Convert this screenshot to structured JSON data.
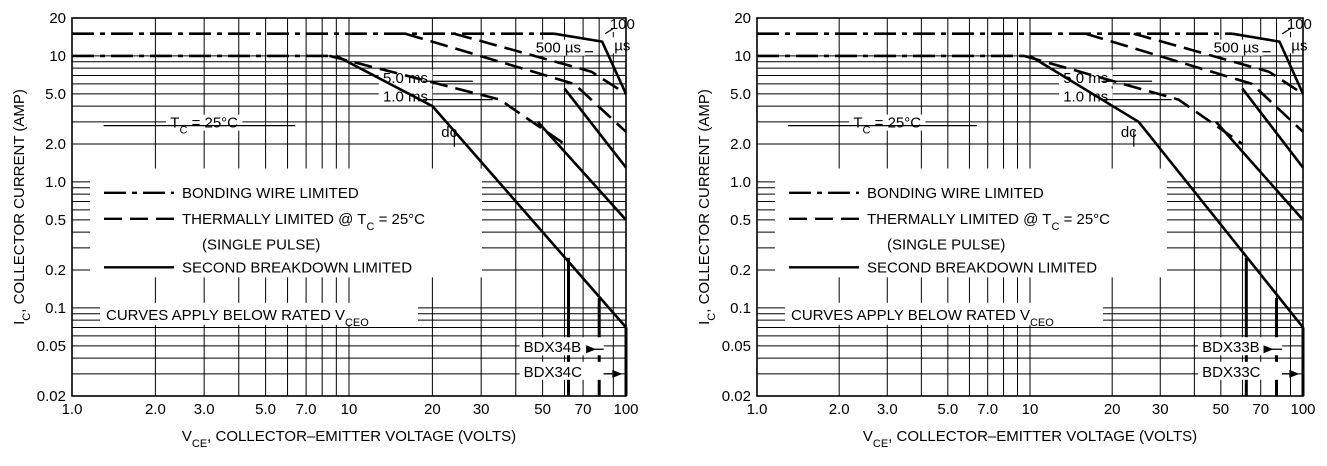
{
  "chart_data": [
    {
      "type": "line",
      "x_scale": "log",
      "y_scale": "log",
      "xlim": [
        1,
        100
      ],
      "ylim": [
        0.02,
        20
      ],
      "grid": true,
      "x_ticks": [
        {
          "v": 1,
          "t": "1.0"
        },
        {
          "v": 2,
          "t": "2.0"
        },
        {
          "v": 3,
          "t": "3.0"
        },
        {
          "v": 5,
          "t": "5.0"
        },
        {
          "v": 7,
          "t": "7.0"
        },
        {
          "v": 10,
          "t": "10"
        },
        {
          "v": 20,
          "t": "20"
        },
        {
          "v": 30,
          "t": "30"
        },
        {
          "v": 50,
          "t": "50"
        },
        {
          "v": 70,
          "t": "70"
        },
        {
          "v": 100,
          "t": "100"
        }
      ],
      "y_ticks": [
        {
          "v": 20,
          "t": "20"
        },
        {
          "v": 10,
          "t": "10"
        },
        {
          "v": 5,
          "t": "5.0"
        },
        {
          "v": 2,
          "t": "2.0"
        },
        {
          "v": 1,
          "t": "1.0"
        },
        {
          "v": 0.5,
          "t": "0.5"
        },
        {
          "v": 0.2,
          "t": "0.2"
        },
        {
          "v": 0.1,
          "t": "0.1"
        },
        {
          "v": 0.05,
          "t": "0.05"
        },
        {
          "v": 0.02,
          "t": "0.02"
        }
      ],
      "xlabel": {
        "pre": "V",
        "sub": "CE",
        "post": ", COLLECTOR–EMITTER VOLTAGE (VOLTS)"
      },
      "ylabel": {
        "pre": "I",
        "sub": "C",
        "post": ", COLLECTOR CURRENT (AMP)"
      },
      "series": [
        {
          "style": "dashdot",
          "x": [
            1,
            55
          ],
          "y": [
            15,
            15
          ]
        },
        {
          "style": "dashdot",
          "x": [
            1,
            8.5
          ],
          "y": [
            10,
            10
          ]
        },
        {
          "style": "dashed",
          "x": [
            8.5,
            35,
            60
          ],
          "y": [
            10,
            4.5,
            2
          ]
        },
        {
          "style": "dashed",
          "x": [
            16,
            65,
            100
          ],
          "y": [
            15,
            6,
            2.5
          ]
        },
        {
          "style": "dashed",
          "x": [
            24,
            75,
            100
          ],
          "y": [
            15,
            7.5,
            5
          ]
        },
        {
          "style": "solid",
          "x": [
            55,
            82,
            100
          ],
          "y": [
            15,
            13,
            5
          ]
        },
        {
          "style": "solid",
          "x": [
            60,
            100
          ],
          "y": [
            5.5,
            1.3
          ]
        },
        {
          "style": "solid",
          "x": [
            48,
            100
          ],
          "y": [
            3,
            0.5
          ]
        },
        {
          "style": "solid",
          "x": [
            9,
            20,
            100
          ],
          "y": [
            10,
            4,
            0.07
          ]
        },
        {
          "style": "solid",
          "x": [
            62,
            62
          ],
          "y": [
            0.02,
            0.25
          ]
        },
        {
          "style": "solid",
          "x": [
            80,
            80
          ],
          "y": [
            0.02,
            0.12
          ]
        },
        {
          "style": "solid",
          "x": [
            100,
            100
          ],
          "y": [
            0.02,
            0.07
          ]
        }
      ],
      "curve_labels": [
        {
          "t": "100",
          "x": 97,
          "y": 17,
          "line": [
            84,
            15,
            90,
            16.5
          ]
        },
        {
          "t": "µs",
          "x": 97,
          "y": 11.5
        },
        {
          "t": "500 µs",
          "x": 57,
          "y": 11,
          "line": [
            71,
            10.8,
            76,
            10.8
          ]
        },
        {
          "t": "5.0 ms",
          "x": 16,
          "y": 6.3,
          "line": [
            18.5,
            6.3,
            28,
            6.3
          ]
        },
        {
          "t": "1.0 ms",
          "x": 16,
          "y": 4.5,
          "line": [
            18.5,
            4.5,
            33,
            4.5
          ]
        },
        {
          "t": "dc",
          "x": 23,
          "y": 2.35,
          "line": [
            24,
            2.55,
            24,
            1.9
          ]
        },
        {
          "t": "T_C = 25°C",
          "x": 3.0,
          "y": 2.8,
          "line": [
            1.3,
            2.8,
            6.4,
            2.8
          ]
        }
      ],
      "legend": {
        "placement": "bottom-left",
        "items": [
          {
            "style": "dashdot",
            "text": "BONDING WIRE LIMITED"
          },
          {
            "style": "dashed",
            "text": "THERMALLY LIMITED @ T_C = 25°C"
          },
          {
            "style": "none",
            "text": "(SINGLE PULSE)"
          },
          {
            "style": "solid",
            "text": "SECOND BREAKDOWN LIMITED"
          }
        ],
        "note": "CURVES APPLY BELOW RATED V_CEO"
      },
      "annotations": [
        {
          "text": "BDX34B",
          "arrow_to_x": 78,
          "y": 0.047
        },
        {
          "text": "BDX34C",
          "arrow_to_x": 97,
          "y": 0.03
        }
      ]
    },
    {
      "type": "line",
      "x_scale": "log",
      "y_scale": "log",
      "xlim": [
        1,
        100
      ],
      "ylim": [
        0.02,
        20
      ],
      "grid": true,
      "x_ticks": [
        {
          "v": 1,
          "t": "1.0"
        },
        {
          "v": 2,
          "t": "2.0"
        },
        {
          "v": 3,
          "t": "3.0"
        },
        {
          "v": 5,
          "t": "5.0"
        },
        {
          "v": 7,
          "t": "7.0"
        },
        {
          "v": 10,
          "t": "10"
        },
        {
          "v": 20,
          "t": "20"
        },
        {
          "v": 30,
          "t": "30"
        },
        {
          "v": 50,
          "t": "50"
        },
        {
          "v": 70,
          "t": "70"
        },
        {
          "v": 100,
          "t": "100"
        }
      ],
      "y_ticks": [
        {
          "v": 20,
          "t": "20"
        },
        {
          "v": 10,
          "t": "10"
        },
        {
          "v": 5,
          "t": "5.0"
        },
        {
          "v": 2,
          "t": "2.0"
        },
        {
          "v": 1,
          "t": "1.0"
        },
        {
          "v": 0.5,
          "t": "0.5"
        },
        {
          "v": 0.2,
          "t": "0.2"
        },
        {
          "v": 0.1,
          "t": "0.1"
        },
        {
          "v": 0.05,
          "t": "0.05"
        },
        {
          "v": 0.02,
          "t": "0.02"
        }
      ],
      "xlabel": {
        "pre": "V",
        "sub": "CE",
        "post": ", COLLECTOR–EMITTER VOLTAGE (VOLTS)"
      },
      "ylabel": {
        "pre": "I",
        "sub": "C",
        "post": ", COLLECTOR CURRENT (AMP)"
      },
      "series": [
        {
          "style": "dashdot",
          "x": [
            1,
            55
          ],
          "y": [
            15,
            15
          ]
        },
        {
          "style": "dashdot",
          "x": [
            1,
            9.5
          ],
          "y": [
            10,
            10
          ]
        },
        {
          "style": "dashed",
          "x": [
            9.5,
            35,
            60
          ],
          "y": [
            10,
            4.5,
            2
          ]
        },
        {
          "style": "dashed",
          "x": [
            16,
            65,
            100
          ],
          "y": [
            15,
            6,
            2.5
          ]
        },
        {
          "style": "dashed",
          "x": [
            24,
            75,
            100
          ],
          "y": [
            15,
            7.5,
            5
          ]
        },
        {
          "style": "solid",
          "x": [
            55,
            82,
            100
          ],
          "y": [
            15,
            13,
            5
          ]
        },
        {
          "style": "solid",
          "x": [
            60,
            100
          ],
          "y": [
            5.5,
            1.3
          ]
        },
        {
          "style": "solid",
          "x": [
            48,
            100
          ],
          "y": [
            3,
            0.5
          ]
        },
        {
          "style": "solid",
          "x": [
            10,
            25,
            100
          ],
          "y": [
            10,
            3,
            0.07
          ]
        },
        {
          "style": "solid",
          "x": [
            62,
            62
          ],
          "y": [
            0.02,
            0.25
          ]
        },
        {
          "style": "solid",
          "x": [
            80,
            80
          ],
          "y": [
            0.02,
            0.12
          ]
        },
        {
          "style": "solid",
          "x": [
            100,
            100
          ],
          "y": [
            0.02,
            0.07
          ]
        }
      ],
      "curve_labels": [
        {
          "t": "100",
          "x": 97,
          "y": 17,
          "line": [
            84,
            15,
            90,
            16.5
          ]
        },
        {
          "t": "µs",
          "x": 97,
          "y": 11.5
        },
        {
          "t": "500 µs",
          "x": 57,
          "y": 11,
          "line": [
            71,
            10.8,
            76,
            10.8
          ]
        },
        {
          "t": "5.0 ms",
          "x": 16,
          "y": 6.3,
          "line": [
            18.5,
            6.3,
            28,
            6.3
          ]
        },
        {
          "t": "1.0 ms",
          "x": 16,
          "y": 4.5,
          "line": [
            18.5,
            4.5,
            33,
            4.5
          ]
        },
        {
          "t": "dc",
          "x": 23,
          "y": 2.35,
          "line": [
            24,
            2.55,
            24,
            1.9
          ]
        },
        {
          "t": "T_C = 25°C",
          "x": 3.0,
          "y": 2.8,
          "line": [
            1.3,
            2.8,
            6.4,
            2.8
          ]
        }
      ],
      "legend": {
        "placement": "bottom-left",
        "items": [
          {
            "style": "dashdot",
            "text": "BONDING WIRE LIMITED"
          },
          {
            "style": "dashed",
            "text": "THERMALLY LIMITED @ T_C = 25°C"
          },
          {
            "style": "none",
            "text": "(SINGLE PULSE)"
          },
          {
            "style": "solid",
            "text": "SECOND BREAKDOWN LIMITED"
          }
        ],
        "note": "CURVES APPLY BELOW RATED V_CEO"
      },
      "annotations": [
        {
          "text": "BDX33B",
          "arrow_to_x": 78,
          "y": 0.047
        },
        {
          "text": "BDX33C",
          "arrow_to_x": 97,
          "y": 0.03
        }
      ]
    }
  ]
}
